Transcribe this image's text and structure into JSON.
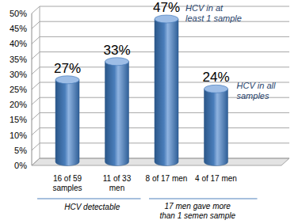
{
  "chart_data": {
    "type": "bar",
    "categories": [
      "16 of 59\nsamples",
      "11 of 33\nmen",
      "8 of 17 men",
      "4 of 17 men"
    ],
    "values": [
      27,
      33,
      47,
      24
    ],
    "value_labels": [
      "27%",
      "33%",
      "47%",
      "24%"
    ],
    "data_labels": true,
    "color": "#4a7ebb",
    "ylim": [
      0,
      50
    ],
    "yticks": [
      {
        "value": 0,
        "label": "0%"
      },
      {
        "value": 5,
        "label": "5%"
      },
      {
        "value": 10,
        "label": "10%"
      },
      {
        "value": 15,
        "label": "15%"
      },
      {
        "value": 20,
        "label": "20%"
      },
      {
        "value": 25,
        "label": "25%"
      },
      {
        "value": 30,
        "label": "30%"
      },
      {
        "value": 35,
        "label": "35%"
      },
      {
        "value": 40,
        "label": "40%"
      },
      {
        "value": 45,
        "label": "45%"
      },
      {
        "value": 50,
        "label": "50%"
      }
    ],
    "grid": true,
    "annotations": [
      "HCV in at\nleast 1 sample",
      "HCV in all\nsamples",
      "HCV detectable",
      "17 men gave more\nthan 1 semen sample"
    ]
  }
}
